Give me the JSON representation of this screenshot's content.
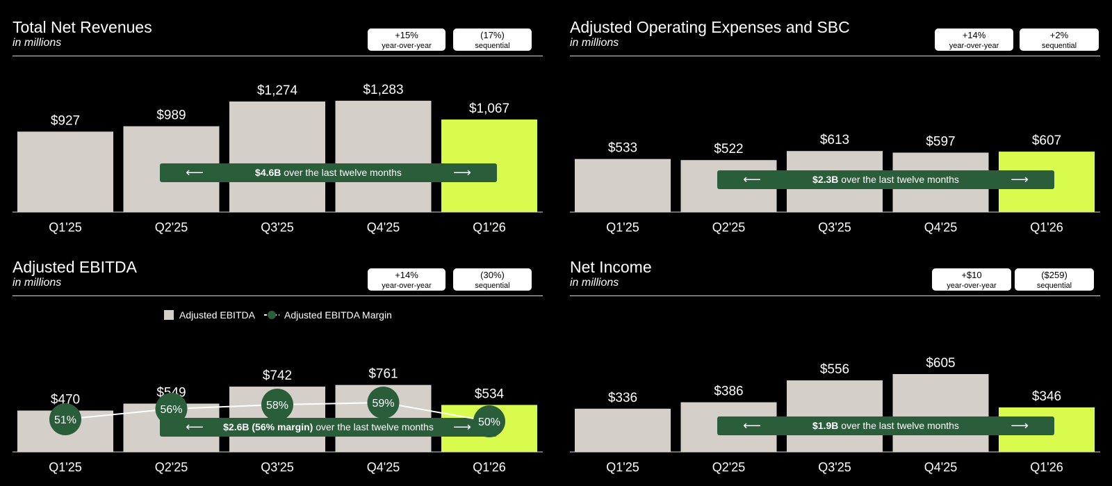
{
  "colors": {
    "bar": "#d4d0c9",
    "highlight": "#d8fb4e",
    "band": "#2a5e3a",
    "background": "#000000",
    "axis": "#d6d6d6"
  },
  "chart_data": [
    {
      "type": "bar",
      "title": "Total Net Revenues",
      "subtitle": "in millions",
      "categories": [
        "Q1'25",
        "Q2'25",
        "Q3'25",
        "Q4'25",
        "Q1'26"
      ],
      "values": [
        927,
        989,
        1274,
        1283,
        1067
      ],
      "value_labels": [
        "$927",
        "$989",
        "$1,274",
        "$1,283",
        "$1,067"
      ],
      "highlight_index": 4,
      "stats": [
        {
          "value": "+15%",
          "label": "year-over-year"
        },
        {
          "value": "(17%)",
          "label": "sequential"
        }
      ],
      "annotation": {
        "bold": "$4.6B",
        "text": " over the last twelve months"
      },
      "arrow_left": "⟵",
      "arrow_right": "⟶",
      "grid": false
    },
    {
      "type": "bar",
      "title": "Adjusted Operating Expenses and SBC",
      "subtitle": "in millions",
      "categories": [
        "Q1'25",
        "Q2'25",
        "Q3'25",
        "Q4'25",
        "Q1'26"
      ],
      "values": [
        533,
        522,
        613,
        597,
        607
      ],
      "value_labels": [
        "$533",
        "$522",
        "$613",
        "$597",
        "$607"
      ],
      "highlight_index": 4,
      "stats": [
        {
          "value": "+14%",
          "label": "year-over-year"
        },
        {
          "value": "+2%",
          "label": "sequential"
        }
      ],
      "annotation": {
        "bold": "$2.3B",
        "text": " over the last twelve months"
      },
      "arrow_left": "⟵",
      "arrow_right": "⟶",
      "grid": false
    },
    {
      "type": "bar",
      "title": "Adjusted EBITDA",
      "subtitle": "in millions",
      "categories": [
        "Q1'25",
        "Q2'25",
        "Q3'25",
        "Q4'25",
        "Q1'26"
      ],
      "values": [
        470,
        549,
        742,
        761,
        534
      ],
      "value_labels": [
        "$470",
        "$549",
        "$742",
        "$761",
        "$534"
      ],
      "highlight_index": 4,
      "stats": [
        {
          "value": "+14%",
          "label": "year-over-year"
        },
        {
          "value": "(30%)",
          "label": "sequential"
        }
      ],
      "annotation": {
        "bold": "$2.6B (56% margin)",
        "text": " over the last twelve months"
      },
      "arrow_left": "⟵",
      "arrow_right": "⟶",
      "legend": {
        "placement": "top-center",
        "bar_label": "Adjusted EBITDA",
        "line_label": "Adjusted EBITDA Margin"
      },
      "series": [
        {
          "name": "Adjusted EBITDA",
          "values": [
            470,
            549,
            742,
            761,
            534
          ]
        },
        {
          "name": "Adjusted EBITDA Margin",
          "values": [
            51,
            56,
            58,
            59,
            50
          ],
          "labels": [
            "51%",
            "56%",
            "58%",
            "59%",
            "50%"
          ]
        }
      ],
      "grid": false
    },
    {
      "type": "bar",
      "title": "Net Income",
      "subtitle": "in millions",
      "categories": [
        "Q1'25",
        "Q2'25",
        "Q3'25",
        "Q4'25",
        "Q1'26"
      ],
      "values": [
        336,
        386,
        556,
        605,
        346
      ],
      "value_labels": [
        "$336",
        "$386",
        "$556",
        "$605",
        "$346"
      ],
      "highlight_index": 4,
      "stats": [
        {
          "value": "+$10",
          "label": "year-over-year"
        },
        {
          "value": "($259)",
          "label": "sequential"
        }
      ],
      "annotation": {
        "bold": "$1.9B",
        "text": " over the last twelve months"
      },
      "arrow_left": "⟵",
      "arrow_right": "⟶",
      "grid": false
    }
  ]
}
